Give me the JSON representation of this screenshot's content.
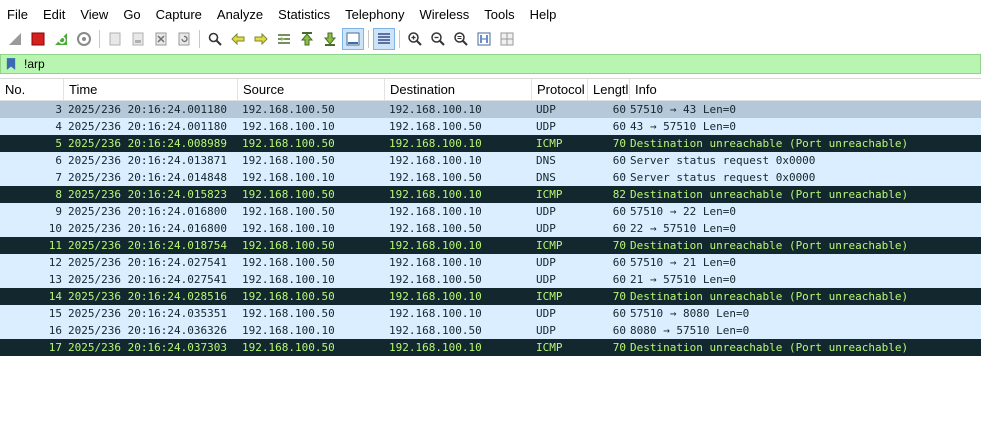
{
  "menu": [
    "File",
    "Edit",
    "View",
    "Go",
    "Capture",
    "Analyze",
    "Statistics",
    "Telephony",
    "Wireless",
    "Tools",
    "Help"
  ],
  "toolbar": {
    "icons": [
      "shark-fin-start-icon",
      "stop-icon",
      "restart-icon",
      "options-gear-icon",
      "open-file-icon",
      "save-file-icon",
      "close-file-icon",
      "reload-icon",
      "find-icon",
      "back-arrow-icon",
      "forward-arrow-icon",
      "go-to-packet-icon",
      "first-packet-icon",
      "last-packet-icon",
      "autoscroll-icon",
      "colorize-icon",
      "zoom-in-icon",
      "zoom-out-icon",
      "normal-size-icon",
      "resize-columns-icon",
      "layout-icon"
    ]
  },
  "filter": {
    "value": "!arp"
  },
  "columns": [
    "No.",
    "Time",
    "Source",
    "Destination",
    "Protocol",
    "Lengtl",
    "Info"
  ],
  "packets": [
    {
      "no": "3",
      "time": "2025/236 20:16:24.001180",
      "src": "192.168.100.50",
      "dst": "192.168.100.10",
      "proto": "UDP",
      "len": "60",
      "info": "57510 → 43 Len=0",
      "style": "udp selected"
    },
    {
      "no": "4",
      "time": "2025/236 20:16:24.001180",
      "src": "192.168.100.10",
      "dst": "192.168.100.50",
      "proto": "UDP",
      "len": "60",
      "info": "43 → 57510 Len=0",
      "style": "udp"
    },
    {
      "no": "5",
      "time": "2025/236 20:16:24.008989",
      "src": "192.168.100.50",
      "dst": "192.168.100.10",
      "proto": "ICMP",
      "len": "70",
      "info": "Destination unreachable (Port unreachable)",
      "style": "icmp"
    },
    {
      "no": "6",
      "time": "2025/236 20:16:24.013871",
      "src": "192.168.100.50",
      "dst": "192.168.100.10",
      "proto": "DNS",
      "len": "60",
      "info": "Server status request 0x0000",
      "style": "dns"
    },
    {
      "no": "7",
      "time": "2025/236 20:16:24.014848",
      "src": "192.168.100.10",
      "dst": "192.168.100.50",
      "proto": "DNS",
      "len": "60",
      "info": "Server status request 0x0000",
      "style": "dns"
    },
    {
      "no": "8",
      "time": "2025/236 20:16:24.015823",
      "src": "192.168.100.50",
      "dst": "192.168.100.10",
      "proto": "ICMP",
      "len": "82",
      "info": "Destination unreachable (Port unreachable)",
      "style": "icmp"
    },
    {
      "no": "9",
      "time": "2025/236 20:16:24.016800",
      "src": "192.168.100.50",
      "dst": "192.168.100.10",
      "proto": "UDP",
      "len": "60",
      "info": "57510 → 22 Len=0",
      "style": "udp"
    },
    {
      "no": "10",
      "time": "2025/236 20:16:24.016800",
      "src": "192.168.100.10",
      "dst": "192.168.100.50",
      "proto": "UDP",
      "len": "60",
      "info": "22 → 57510 Len=0",
      "style": "udp"
    },
    {
      "no": "11",
      "time": "2025/236 20:16:24.018754",
      "src": "192.168.100.50",
      "dst": "192.168.100.10",
      "proto": "ICMP",
      "len": "70",
      "info": "Destination unreachable (Port unreachable)",
      "style": "icmp"
    },
    {
      "no": "12",
      "time": "2025/236 20:16:24.027541",
      "src": "192.168.100.50",
      "dst": "192.168.100.10",
      "proto": "UDP",
      "len": "60",
      "info": "57510 → 21 Len=0",
      "style": "udp"
    },
    {
      "no": "13",
      "time": "2025/236 20:16:24.027541",
      "src": "192.168.100.10",
      "dst": "192.168.100.50",
      "proto": "UDP",
      "len": "60",
      "info": "21 → 57510 Len=0",
      "style": "udp"
    },
    {
      "no": "14",
      "time": "2025/236 20:16:24.028516",
      "src": "192.168.100.50",
      "dst": "192.168.100.10",
      "proto": "ICMP",
      "len": "70",
      "info": "Destination unreachable (Port unreachable)",
      "style": "icmp"
    },
    {
      "no": "15",
      "time": "2025/236 20:16:24.035351",
      "src": "192.168.100.50",
      "dst": "192.168.100.10",
      "proto": "UDP",
      "len": "60",
      "info": "57510 → 8080 Len=0",
      "style": "udp"
    },
    {
      "no": "16",
      "time": "2025/236 20:16:24.036326",
      "src": "192.168.100.10",
      "dst": "192.168.100.50",
      "proto": "UDP",
      "len": "60",
      "info": "8080 → 57510 Len=0",
      "style": "udp"
    },
    {
      "no": "17",
      "time": "2025/236 20:16:24.037303",
      "src": "192.168.100.50",
      "dst": "192.168.100.10",
      "proto": "ICMP",
      "len": "70",
      "info": "Destination unreachable (Port unreachable)",
      "style": "icmp"
    }
  ],
  "colors": {
    "filter_ok": "#b7f5b0",
    "udp_row": "#daeeff",
    "selected_row": "#b5c8d9",
    "icmp_row_bg": "#12272e",
    "icmp_row_fg": "#b7f774"
  }
}
